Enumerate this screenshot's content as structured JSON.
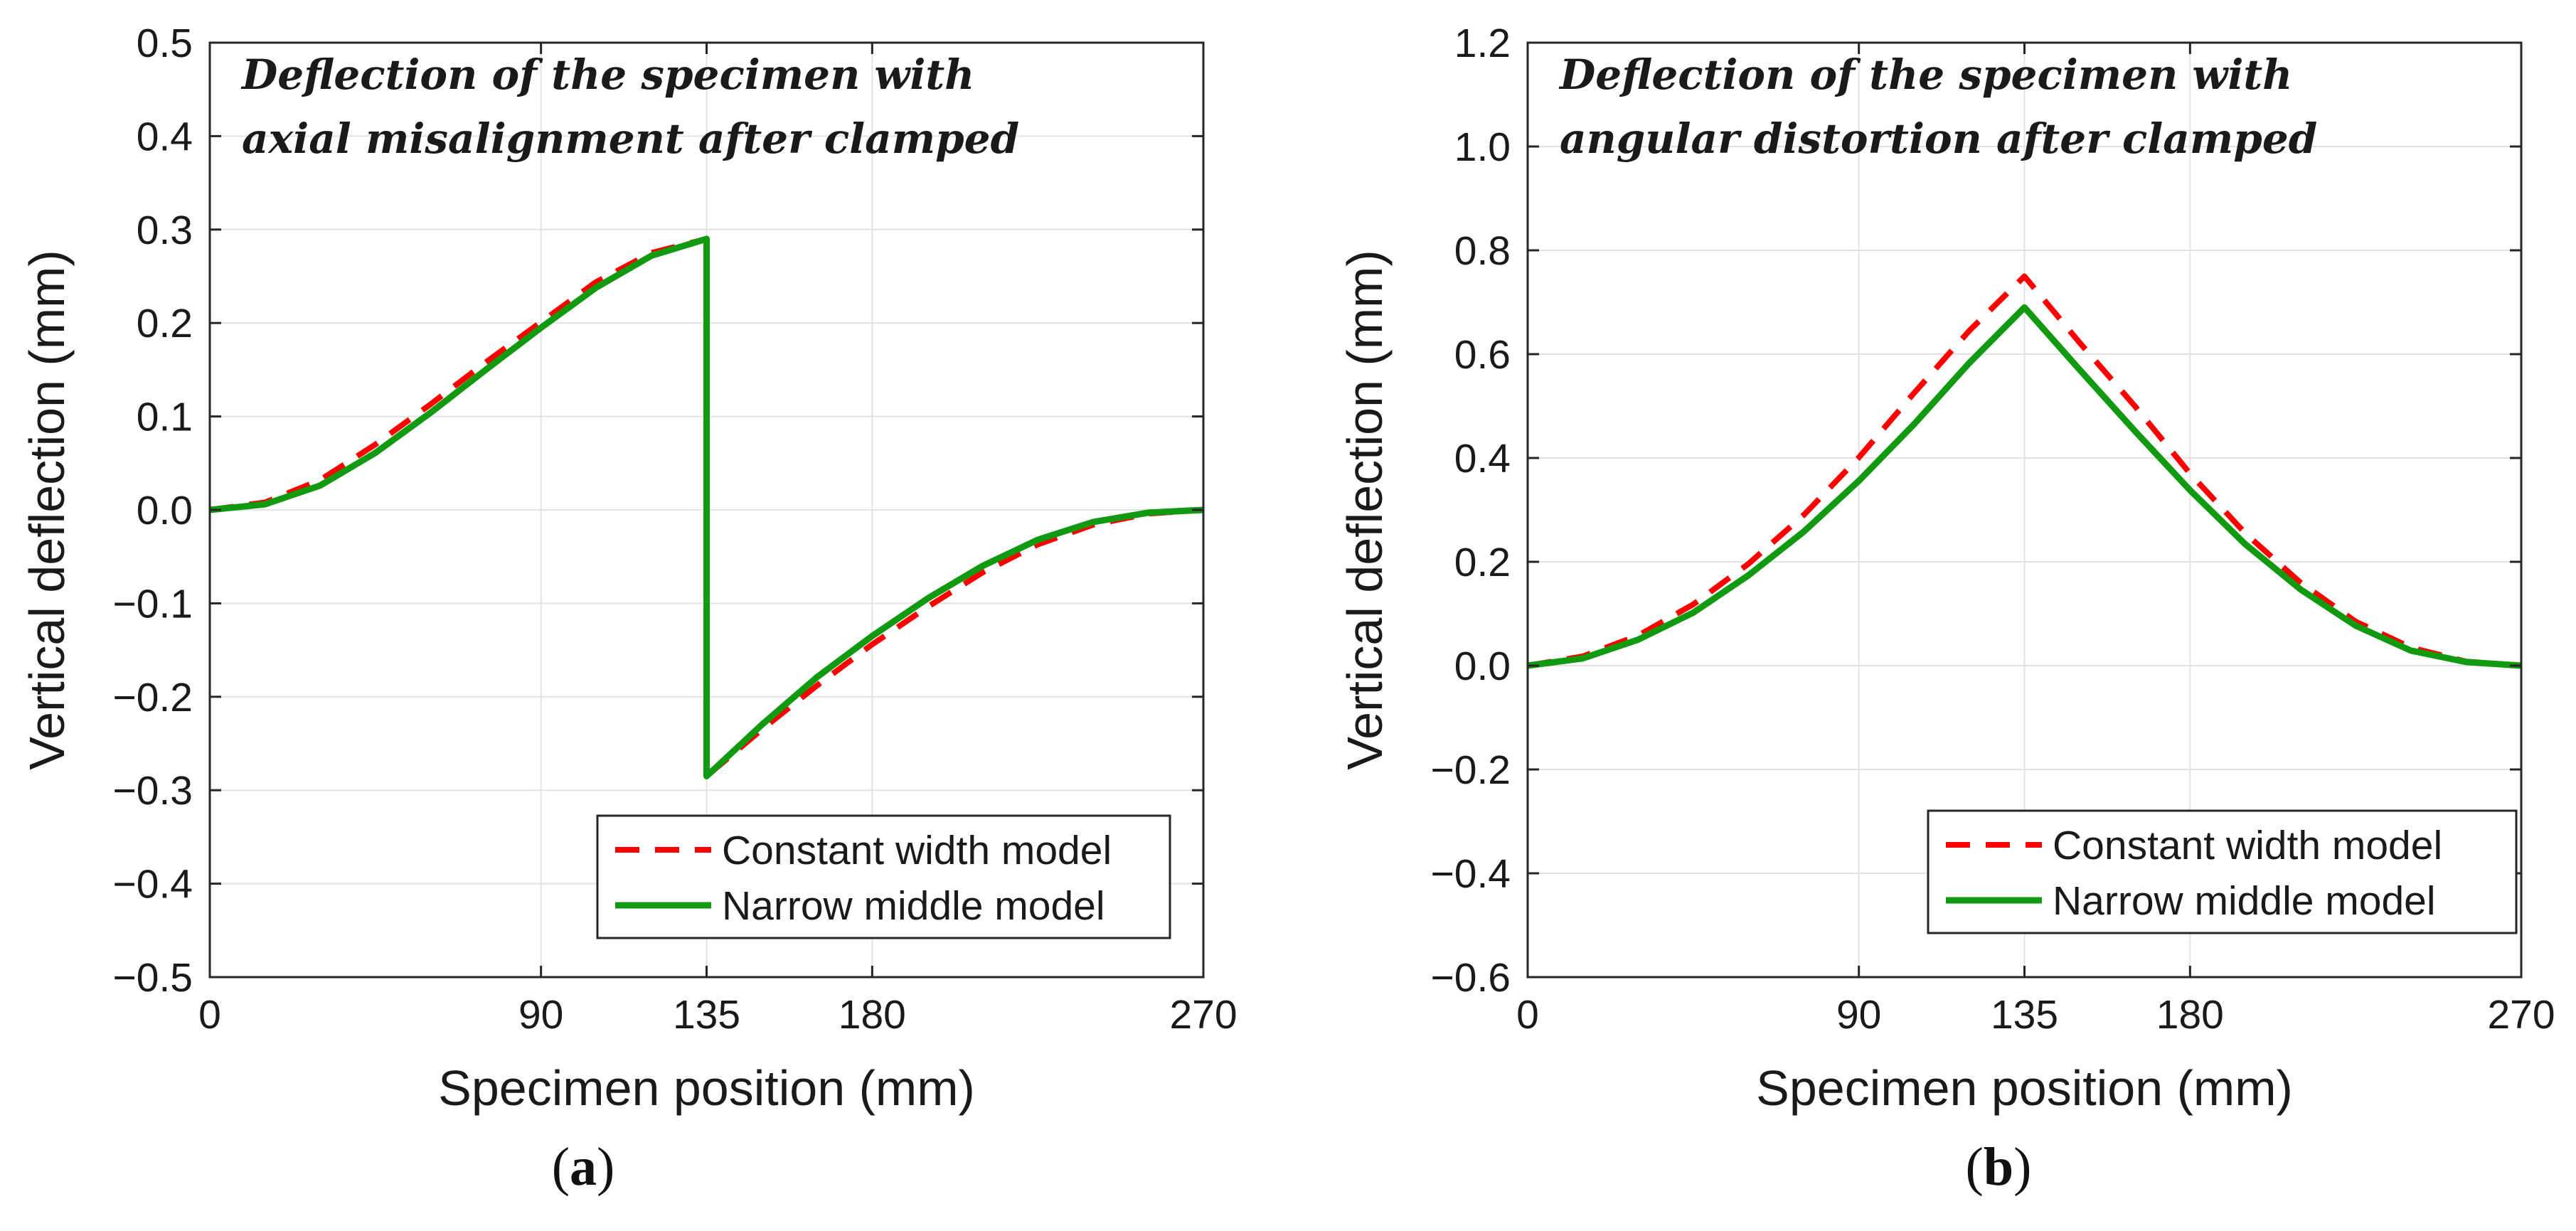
{
  "chart_data": [
    {
      "type": "line",
      "panel_label": "a",
      "annotation_lines": [
        "Deflection of the specimen with",
        "axial misalignment after clamped"
      ],
      "xlabel": "Specimen position (mm)",
      "ylabel": "Vertical deflection (mm)",
      "xlim": [
        0,
        270
      ],
      "ylim": [
        -0.5,
        0.5
      ],
      "xticks": [
        0,
        90,
        135,
        180,
        270
      ],
      "yticks": [
        -0.5,
        -0.4,
        -0.3,
        -0.2,
        -0.1,
        0.0,
        0.1,
        0.2,
        0.3,
        0.4,
        0.5
      ],
      "ytick_labels": [
        "−0.5",
        "−0.4",
        "−0.3",
        "−0.2",
        "−0.1",
        "0.0",
        "0.1",
        "0.2",
        "0.3",
        "0.4",
        "0.5"
      ],
      "grid": true,
      "legend_position": "bottom-right",
      "series": [
        {
          "name": "Constant width model",
          "color": "#ff0000",
          "style": "dashed",
          "x": [
            0,
            15,
            30,
            45,
            60,
            75,
            90,
            105,
            120,
            135,
            135,
            150,
            165,
            180,
            195,
            210,
            225,
            240,
            255,
            270
          ],
          "y": [
            0.0,
            0.008,
            0.032,
            0.07,
            0.113,
            0.158,
            0.201,
            0.244,
            0.275,
            0.29,
            -0.285,
            -0.235,
            -0.188,
            -0.144,
            -0.104,
            -0.067,
            -0.037,
            -0.016,
            -0.004,
            0.0
          ]
        },
        {
          "name": "Narrow middle model",
          "color": "#119911",
          "style": "solid",
          "x": [
            0,
            15,
            30,
            45,
            60,
            75,
            90,
            105,
            120,
            135,
            135,
            150,
            165,
            180,
            195,
            210,
            225,
            240,
            255,
            270
          ],
          "y": [
            0.0,
            0.006,
            0.026,
            0.061,
            0.104,
            0.15,
            0.195,
            0.238,
            0.272,
            0.29,
            -0.285,
            -0.23,
            -0.179,
            -0.135,
            -0.095,
            -0.06,
            -0.032,
            -0.013,
            -0.003,
            0.0
          ]
        }
      ]
    },
    {
      "type": "line",
      "panel_label": "b",
      "annotation_lines": [
        "Deflection of the specimen with",
        "angular distortion after clamped"
      ],
      "xlabel": "Specimen position (mm)",
      "ylabel": "Vertical deflection (mm)",
      "xlim": [
        0,
        270
      ],
      "ylim": [
        -0.6,
        1.2
      ],
      "xticks": [
        0,
        90,
        135,
        180,
        270
      ],
      "yticks": [
        -0.6,
        -0.4,
        -0.2,
        0.0,
        0.2,
        0.4,
        0.6,
        0.8,
        1.0,
        1.2
      ],
      "ytick_labels": [
        "−0.6",
        "−0.4",
        "−0.2",
        "0.0",
        "0.2",
        "0.4",
        "0.6",
        "0.8",
        "1.0",
        "1.2"
      ],
      "grid": true,
      "legend_position": "bottom-right",
      "series": [
        {
          "name": "Constant width model",
          "color": "#ff0000",
          "style": "dashed",
          "x": [
            0,
            15,
            30,
            45,
            60,
            75,
            90,
            105,
            120,
            135,
            150,
            165,
            180,
            195,
            210,
            225,
            240,
            255,
            270
          ],
          "y": [
            0.0,
            0.018,
            0.058,
            0.118,
            0.196,
            0.29,
            0.401,
            0.525,
            0.645,
            0.75,
            0.622,
            0.5,
            0.37,
            0.255,
            0.16,
            0.085,
            0.035,
            0.008,
            0.0
          ]
        },
        {
          "name": "Narrow middle model",
          "color": "#119911",
          "style": "solid",
          "x": [
            0,
            15,
            30,
            45,
            60,
            75,
            90,
            105,
            120,
            135,
            150,
            165,
            180,
            195,
            210,
            225,
            240,
            255,
            270
          ],
          "y": [
            0.0,
            0.014,
            0.05,
            0.102,
            0.174,
            0.258,
            0.356,
            0.465,
            0.583,
            0.69,
            0.57,
            0.452,
            0.338,
            0.234,
            0.147,
            0.077,
            0.029,
            0.007,
            0.0
          ]
        }
      ]
    }
  ]
}
